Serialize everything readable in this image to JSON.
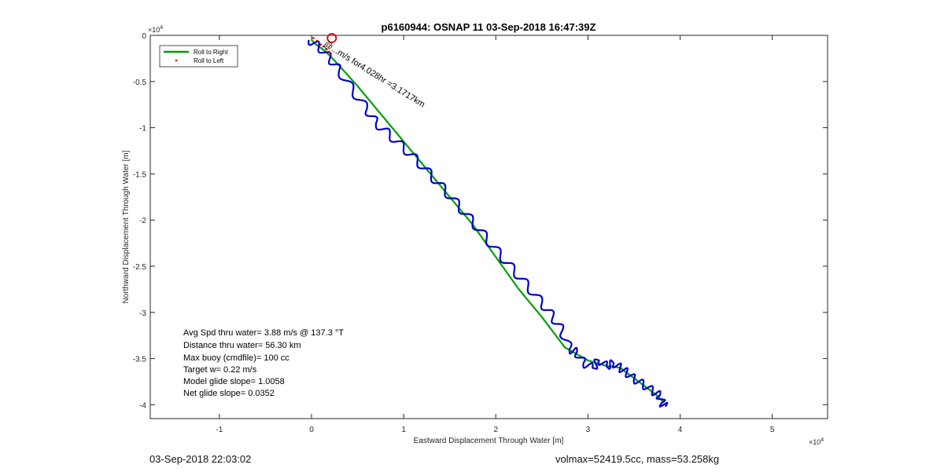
{
  "chart_data": {
    "type": "line",
    "title": "p6160944: OSNAP 11 03-Sep-2018 16:47:39Z",
    "xlabel": "Eastward Displacement Through Water [m]",
    "ylabel": "Northward Displacement Through Water [m]",
    "xlim": [
      -1.75,
      5.6
    ],
    "ylim": [
      -4.15,
      0
    ],
    "axis_scale_label": "×10^4",
    "axis_multiplier": 10000,
    "xticks": [
      -1,
      0,
      1,
      2,
      3,
      4,
      5
    ],
    "yticks": [
      0,
      -0.5,
      -1,
      -1.5,
      -2,
      -2.5,
      -3,
      -3.5,
      -4
    ],
    "xtick_labels": [
      "-1",
      "0",
      "1",
      "2",
      "3",
      "4",
      "5"
    ],
    "ytick_labels": [
      "0",
      "-0.5",
      "-1",
      "-1.5",
      "-2",
      "-2.5",
      "-3",
      "-3.5",
      "-4"
    ],
    "grid": false,
    "legend_position": "top-left",
    "series": [
      {
        "name": "Roll to Right",
        "color": "#00a000",
        "x": [
          0.0,
          0.05,
          0.12,
          0.2,
          0.32,
          0.5,
          0.75,
          1.0,
          1.25,
          1.5,
          1.75,
          2.0,
          2.25,
          2.5,
          2.75,
          3.0,
          3.2,
          3.35,
          3.55,
          3.75,
          3.82
        ],
        "y": [
          -0.05,
          -0.1,
          -0.15,
          -0.22,
          -0.35,
          -0.55,
          -0.85,
          -1.15,
          -1.45,
          -1.75,
          -2.05,
          -2.4,
          -2.75,
          -3.05,
          -3.38,
          -3.52,
          -3.58,
          -3.6,
          -3.75,
          -3.9,
          -3.97
        ]
      },
      {
        "name": "Roll to Left",
        "color": "#cc0000",
        "x": [
          0.02,
          0.06,
          0.1,
          0.13,
          0.16,
          0.19,
          0.21
        ],
        "y": [
          -0.03,
          -0.06,
          -0.1,
          -0.12,
          -0.15,
          -0.18,
          -0.2
        ]
      },
      {
        "name": "",
        "color": "#0000cc",
        "x": [
          -0.03,
          0.08,
          0.2,
          0.3,
          0.45,
          0.6,
          0.7,
          0.85,
          1.0,
          1.15,
          1.3,
          1.45,
          1.6,
          1.75,
          1.9,
          2.05,
          2.2,
          2.35,
          2.5,
          2.62,
          2.72,
          2.8,
          2.88,
          2.95,
          3.05,
          3.12,
          3.2,
          3.28,
          3.35,
          3.42,
          3.5,
          3.6,
          3.7,
          3.78,
          3.8,
          3.84
        ],
        "y": [
          -0.05,
          -0.12,
          -0.25,
          -0.38,
          -0.6,
          -0.8,
          -0.95,
          -1.08,
          -1.22,
          -1.36,
          -1.52,
          -1.68,
          -1.85,
          -2.02,
          -2.2,
          -2.38,
          -2.55,
          -2.72,
          -2.9,
          -3.05,
          -3.2,
          -3.4,
          -3.43,
          -3.55,
          -3.6,
          -3.52,
          -3.58,
          -3.55,
          -3.6,
          -3.65,
          -3.72,
          -3.78,
          -3.85,
          -3.9,
          -3.98,
          -4.02
        ]
      }
    ],
    "markers": {
      "start_circle": {
        "x": 0.22,
        "y": -0.03,
        "color": "#cc0000"
      }
    },
    "annotations": {
      "rotated_label": "@...m/s for4.028hr =3.1717km",
      "stats": [
        "Avg Spd thru water=  3.88 m/s @ 137.3 °T",
        "Distance thru water= 56.30 km",
        "Max buoy (cmdfile)= 100 cc",
        "Target w= 0.22 m/s",
        "Model glide slope= 1.0058",
        "Net glide slope= 0.0352"
      ]
    }
  },
  "footer": {
    "left": "03-Sep-2018 22:03:02",
    "right": "volmax=52419.5cc, mass=53.258kg"
  }
}
